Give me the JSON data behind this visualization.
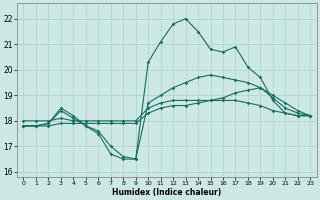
{
  "title": "",
  "xlabel": "Humidex (Indice chaleur)",
  "bg_color": "#cce8e4",
  "grid_color": "#b0d4d0",
  "line_color": "#1a6b5e",
  "xlim": [
    -0.5,
    23.5
  ],
  "ylim": [
    15.8,
    22.6
  ],
  "yticks": [
    16,
    17,
    18,
    19,
    20,
    21,
    22
  ],
  "xticks": [
    0,
    1,
    2,
    3,
    4,
    5,
    6,
    7,
    8,
    9,
    10,
    11,
    12,
    13,
    14,
    15,
    16,
    17,
    18,
    19,
    20,
    21,
    22,
    23
  ],
  "line1_x": [
    0,
    1,
    2,
    3,
    4,
    5,
    6,
    7,
    8,
    9,
    10,
    11,
    12,
    13,
    14,
    15,
    16,
    17,
    18,
    19,
    20,
    21,
    22,
    23
  ],
  "line1_y": [
    17.8,
    17.8,
    17.9,
    18.4,
    18.1,
    17.8,
    17.5,
    16.7,
    16.5,
    16.5,
    20.3,
    21.1,
    21.8,
    22.0,
    21.5,
    20.8,
    20.7,
    20.9,
    20.1,
    19.7,
    18.8,
    18.3,
    18.2,
    18.2
  ],
  "line2_x": [
    0,
    1,
    2,
    3,
    4,
    5,
    6,
    7,
    8,
    9,
    10,
    11,
    12,
    13,
    14,
    15,
    16,
    17,
    18,
    19,
    20,
    21,
    22,
    23
  ],
  "line2_y": [
    18.0,
    18.0,
    18.0,
    18.1,
    18.0,
    18.0,
    18.0,
    18.0,
    18.0,
    18.0,
    18.5,
    18.7,
    18.8,
    18.8,
    18.8,
    18.8,
    18.8,
    18.8,
    18.7,
    18.6,
    18.4,
    18.3,
    18.2,
    18.2
  ],
  "line3_x": [
    0,
    1,
    2,
    3,
    4,
    5,
    6,
    7,
    8,
    9,
    10,
    11,
    12,
    13,
    14,
    15,
    16,
    17,
    18,
    19,
    20,
    21,
    22,
    23
  ],
  "line3_y": [
    17.8,
    17.8,
    17.8,
    17.9,
    17.9,
    17.9,
    17.9,
    17.9,
    17.9,
    17.9,
    18.3,
    18.5,
    18.6,
    18.6,
    18.7,
    18.8,
    18.9,
    19.1,
    19.2,
    19.3,
    19.0,
    18.7,
    18.4,
    18.2
  ],
  "line4_x": [
    0,
    1,
    2,
    3,
    4,
    5,
    6,
    7,
    8,
    9,
    10,
    11,
    12,
    13,
    14,
    15,
    16,
    17,
    18,
    19,
    20,
    21,
    22,
    23
  ],
  "line4_y": [
    17.8,
    17.8,
    17.9,
    18.5,
    18.2,
    17.8,
    17.6,
    17.0,
    16.6,
    16.5,
    18.7,
    19.0,
    19.3,
    19.5,
    19.7,
    19.8,
    19.7,
    19.6,
    19.5,
    19.3,
    18.9,
    18.5,
    18.3,
    18.2
  ]
}
